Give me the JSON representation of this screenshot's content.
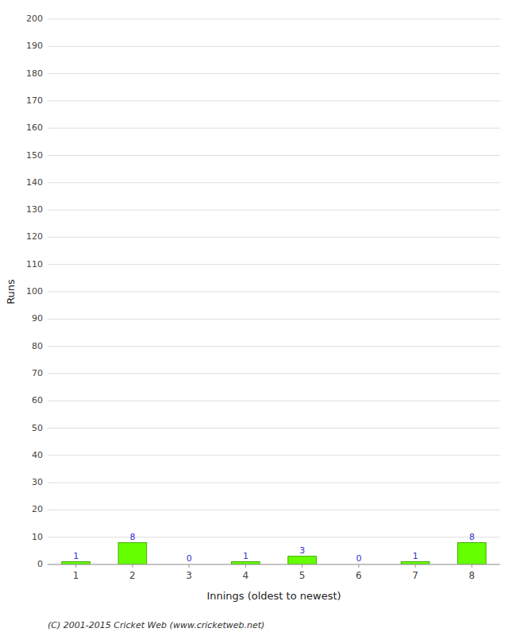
{
  "chart_data": {
    "type": "bar",
    "xlabel": "Innings (oldest to newest)",
    "ylabel": "Runs",
    "categories": [
      "1",
      "2",
      "3",
      "4",
      "5",
      "6",
      "7",
      "8"
    ],
    "values": [
      1,
      8,
      0,
      1,
      3,
      0,
      1,
      8
    ],
    "color": "#66ff00",
    "ylim": [
      0,
      200
    ],
    "yticks": [
      0,
      10,
      20,
      30,
      40,
      50,
      60,
      70,
      80,
      90,
      100,
      110,
      120,
      130,
      140,
      150,
      160,
      170,
      180,
      190,
      200
    ],
    "grid": true,
    "data_labels": true,
    "annotations": [
      "(C) 2001-2015 Cricket Web (www.cricketweb.net)"
    ]
  }
}
